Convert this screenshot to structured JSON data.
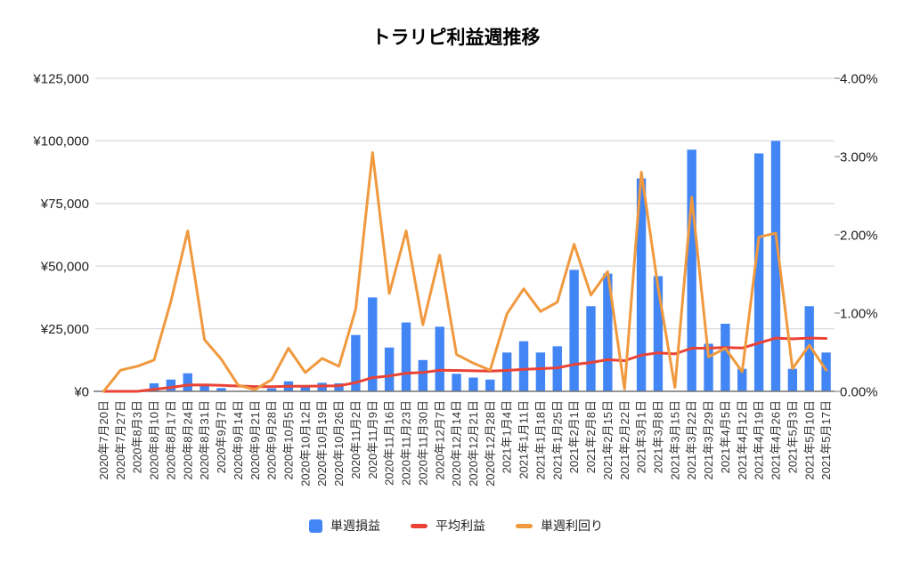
{
  "title": "トラリピ利益週推移",
  "legend": {
    "items": [
      {
        "label": "単週損益",
        "marker": "bar-swatch",
        "color": "#4285f4"
      },
      {
        "label": "平均利益",
        "marker": "line-swatch",
        "color": "#ea4335"
      },
      {
        "label": "単週利回り",
        "marker": "line-swatch",
        "color": "#f0993e"
      }
    ]
  },
  "axes": {
    "left": {
      "tick_labels": [
        "¥0",
        "¥25,000",
        "¥50,000",
        "¥75,000",
        "¥100,000",
        "¥125,000"
      ]
    },
    "right": {
      "tick_labels": [
        "0.00%",
        "1.00%",
        "2.00%",
        "3.00%",
        "4.00%"
      ]
    }
  },
  "colors": {
    "bar_blue": "#4285f4",
    "line_red": "#ea4335",
    "line_orange": "#f0993e",
    "gridline": "#dadce0",
    "axis_line": "#757575",
    "axis_text": "#212121"
  },
  "chart_data": {
    "type": "bar",
    "subtype": "combo-bar-and-lines",
    "title": "トラリピ利益週推移",
    "xlabel": "",
    "ylabel": "",
    "grid": true,
    "legend_position": "bottom",
    "left_axis": {
      "range": [
        0,
        125000
      ],
      "tick_step": 25000,
      "format": "¥#,##0"
    },
    "right_axis": {
      "range": [
        0,
        4
      ],
      "tick_step": 1,
      "format": "0.00%"
    },
    "categories": [
      "2020年7月20日",
      "2020年7月27日",
      "2020年8月3日",
      "2020年8月10日",
      "2020年8月17日",
      "2020年8月24日",
      "2020年8月31日",
      "2020年9月7日",
      "2020年9月14日",
      "2020年9月21日",
      "2020年9月28日",
      "2020年10月5日",
      "2020年10月12日",
      "2020年10月19日",
      "2020年10月26日",
      "2020年11月2日",
      "2020年11月9日",
      "2020年11月16日",
      "2020年11月23日",
      "2020年11月30日",
      "2020年12月7日",
      "2020年12月14日",
      "2020年12月21日",
      "2020年12月28日",
      "2021年1月4日",
      "2021年1月11日",
      "2021年1月18日",
      "2021年1月25日",
      "2021年2月1日",
      "2021年2月8日",
      "2021年2月15日",
      "2021年2月22日",
      "2021年3月1日",
      "2021年3月8日",
      "2021年3月15日",
      "2021年3月22日",
      "2021年3月29日",
      "2021年4月5日",
      "2021年4月12日",
      "2021年4月19日",
      "2021年4月26日",
      "2021年5月3日",
      "2021年5月10日",
      "2021年5月17日"
    ],
    "series": [
      {
        "name": "単週損益",
        "type": "bar",
        "axis": "left",
        "color": "#4285f4",
        "values": [
          0,
          0,
          0,
          3200,
          4700,
          7200,
          2700,
          1300,
          0,
          0,
          1200,
          4000,
          2000,
          3400,
          3200,
          22500,
          37500,
          17500,
          27500,
          12500,
          25800,
          7000,
          5500,
          4700,
          15500,
          20000,
          15500,
          18000,
          48500,
          34000,
          47000,
          0,
          85000,
          46000,
          0,
          96500,
          19000,
          27000,
          9000,
          95000,
          100000,
          9000,
          34000,
          15500
        ]
      },
      {
        "name": "平均利益",
        "type": "line",
        "axis": "left",
        "color": "#ea4335",
        "values": [
          0,
          0,
          0,
          800,
          1580,
          2520,
          2540,
          2390,
          2120,
          1910,
          1850,
          2030,
          2020,
          2130,
          2200,
          3470,
          5470,
          6140,
          7260,
          7530,
          8400,
          8330,
          8210,
          8060,
          8360,
          8810,
          9060,
          9380,
          10720,
          11500,
          12650,
          12250,
          14460,
          15380,
          14940,
          17210,
          17260,
          17510,
          17300,
          19290,
          21260,
          20960,
          21270,
          21140
        ]
      },
      {
        "name": "単週利回り",
        "type": "line",
        "axis": "right",
        "color": "#f0993e",
        "values": [
          0.0,
          0.27,
          0.32,
          0.4,
          1.15,
          2.05,
          0.66,
          0.41,
          0.08,
          0.02,
          0.15,
          0.55,
          0.24,
          0.42,
          0.32,
          1.05,
          3.05,
          1.25,
          2.05,
          0.85,
          1.74,
          0.47,
          0.36,
          0.27,
          0.99,
          1.31,
          1.02,
          1.14,
          1.88,
          1.23,
          1.53,
          0.03,
          2.8,
          1.33,
          0.05,
          2.48,
          0.44,
          0.55,
          0.25,
          1.97,
          2.02,
          0.29,
          0.59,
          0.27
        ]
      }
    ]
  }
}
